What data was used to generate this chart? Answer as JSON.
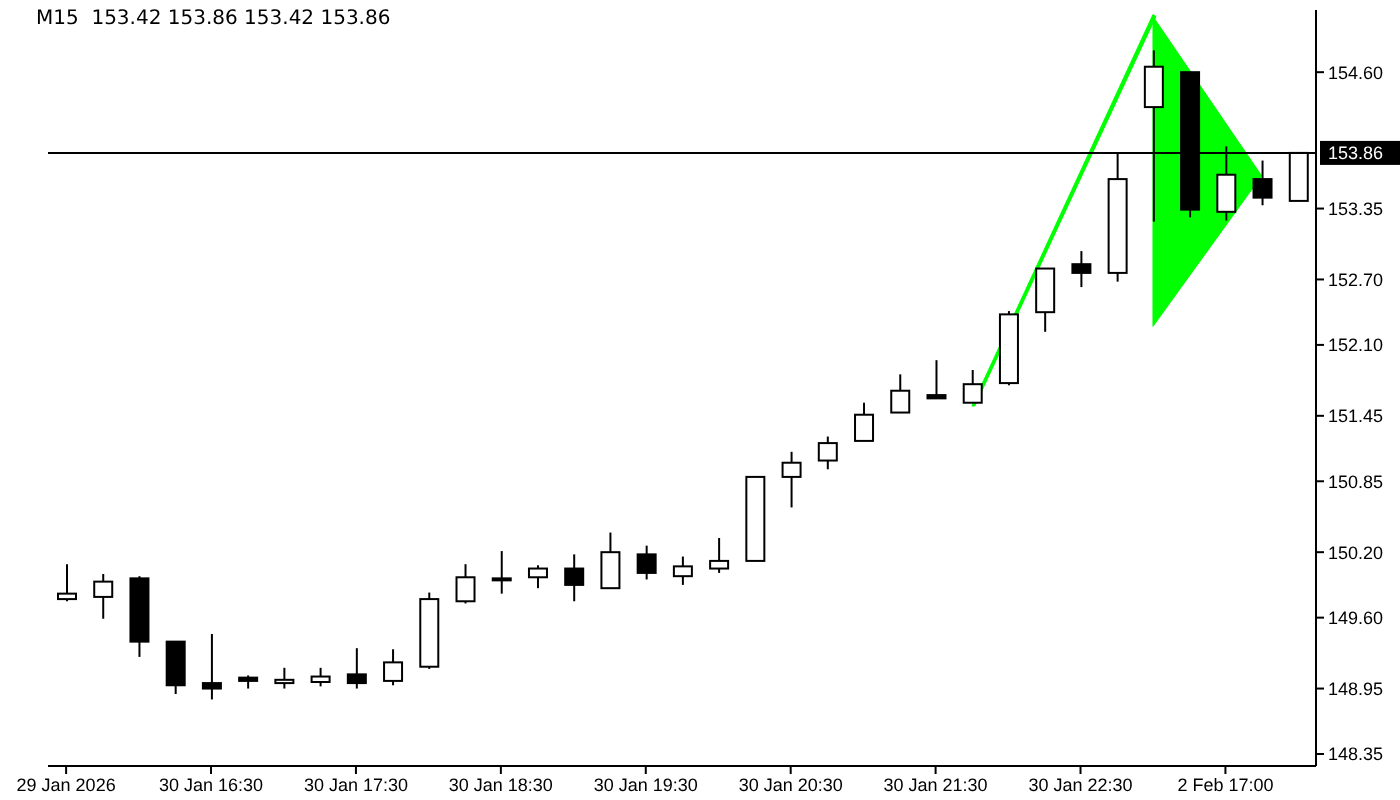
{
  "chart_data": {
    "type": "candlestick",
    "title": "M15  153.42 153.86 153.42 153.86",
    "categories": [
      "29 Jan 2026",
      null,
      null,
      null,
      "30 Jan 16:30",
      null,
      null,
      null,
      "30 Jan 17:30",
      null,
      null,
      null,
      "30 Jan 18:30",
      null,
      null,
      null,
      "30 Jan 19:30",
      null,
      null,
      null,
      "30 Jan 20:30",
      null,
      null,
      null,
      "30 Jan 21:30",
      null,
      null,
      null,
      "30 Jan 22:30",
      null,
      null,
      null,
      "2 Feb 17:00",
      null,
      null
    ],
    "ohlc": [
      [
        149.77,
        150.09,
        149.75,
        149.82
      ],
      [
        149.79,
        150.0,
        149.59,
        149.93
      ],
      [
        149.96,
        149.98,
        149.24,
        149.38
      ],
      [
        149.38,
        149.38,
        148.9,
        148.98
      ],
      [
        149.0,
        149.45,
        148.85,
        148.95
      ],
      [
        149.05,
        149.07,
        148.95,
        149.02
      ],
      [
        149.0,
        149.14,
        148.95,
        149.03
      ],
      [
        149.01,
        149.14,
        148.97,
        149.06
      ],
      [
        149.08,
        149.32,
        148.95,
        149.0
      ],
      [
        149.02,
        149.31,
        148.98,
        149.19
      ],
      [
        149.15,
        149.83,
        149.13,
        149.77
      ],
      [
        149.75,
        150.09,
        149.73,
        149.97
      ],
      [
        149.96,
        150.21,
        149.82,
        149.96
      ],
      [
        149.97,
        150.08,
        149.87,
        150.05
      ],
      [
        150.05,
        150.18,
        149.75,
        149.9
      ],
      [
        149.87,
        150.38,
        149.87,
        150.2
      ],
      [
        150.18,
        150.26,
        149.95,
        150.01
      ],
      [
        149.98,
        150.16,
        149.9,
        150.07
      ],
      [
        150.05,
        150.33,
        150.01,
        150.12
      ],
      [
        150.12,
        150.89,
        150.12,
        150.89
      ],
      [
        150.89,
        151.12,
        150.61,
        151.02
      ],
      [
        151.04,
        151.26,
        150.96,
        151.2
      ],
      [
        151.22,
        151.57,
        151.22,
        151.46
      ],
      [
        151.48,
        151.83,
        151.48,
        151.68
      ],
      [
        151.64,
        151.96,
        151.61,
        151.61
      ],
      [
        151.57,
        151.87,
        151.57,
        151.74
      ],
      [
        151.75,
        152.41,
        151.73,
        152.38
      ],
      [
        152.4,
        152.8,
        152.22,
        152.8
      ],
      [
        152.84,
        152.96,
        152.63,
        152.76
      ],
      [
        152.76,
        153.85,
        152.68,
        153.62
      ],
      [
        154.28,
        154.8,
        153.23,
        154.65
      ],
      [
        154.6,
        154.6,
        153.27,
        153.34
      ],
      [
        153.32,
        153.92,
        153.24,
        153.66
      ],
      [
        153.62,
        153.79,
        153.38,
        153.45
      ],
      [
        153.42,
        153.86,
        153.42,
        153.86
      ]
    ],
    "ylim": [
      148.24,
      155.17
    ],
    "yticks": [
      {
        "value": 148.35,
        "label": "148.35"
      },
      {
        "value": 148.95,
        "label": "148.95"
      },
      {
        "value": 149.6,
        "label": "149.60"
      },
      {
        "value": 150.2,
        "label": "150.20"
      },
      {
        "value": 150.85,
        "label": "150.85"
      },
      {
        "value": 151.45,
        "label": "151.45"
      },
      {
        "value": 152.1,
        "label": "152.10"
      },
      {
        "value": 152.7,
        "label": "152.70"
      },
      {
        "value": 153.35,
        "label": "153.35"
      },
      {
        "value": 154.6,
        "label": "154.60"
      }
    ],
    "ref_lines": [
      {
        "axis": "y",
        "value": 153.86,
        "label": "153.86",
        "color": "#000000"
      }
    ]
  }
}
